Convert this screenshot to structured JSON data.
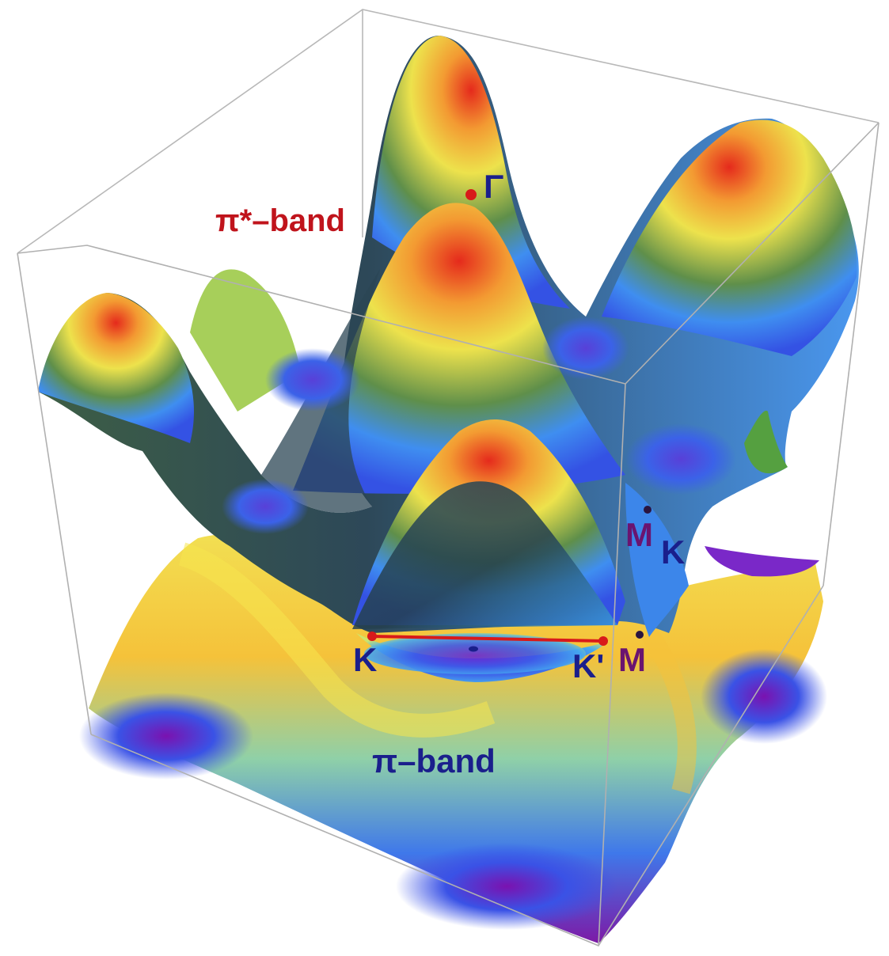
{
  "figure": {
    "labels": {
      "pi_star_band": "π*–band",
      "pi_band": "π–band",
      "gamma": "Γ",
      "k": "K",
      "k_prime": "K'",
      "m_upper": "M",
      "k_upper": "K",
      "m_lower": "M"
    },
    "colors": {
      "pi_star_label": "#c0141c",
      "pi_label": "#1a1f8c",
      "point_label": "#1a1f8c",
      "m_label": "#6a1470",
      "path_line": "#d81a1a",
      "box_edge": "#b5b5b5"
    },
    "surface_colormap": [
      "#7a1aa8",
      "#3f5ee8",
      "#3aaef0",
      "#4c7a4a",
      "#f2e24a",
      "#f59a30",
      "#e2241c"
    ]
  }
}
